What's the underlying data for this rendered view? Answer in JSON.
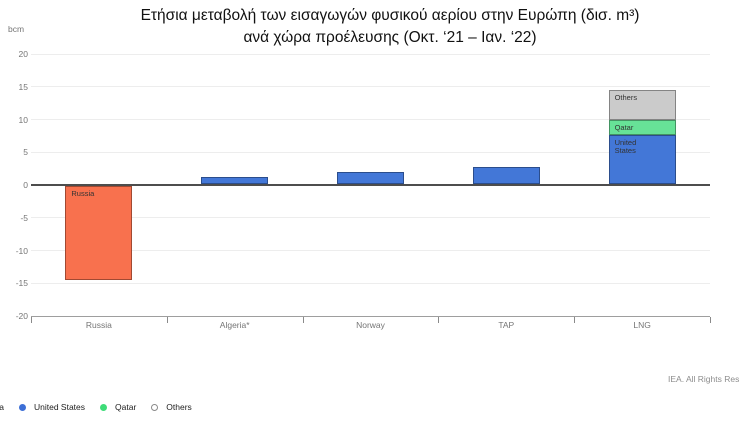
{
  "title": {
    "line1": "Ετήσια μεταβολή των εισαγωγών φυσικού αερίου στην Ευρώπη (δισ. m³)",
    "line2": "ανά χώρα προέλευσης (Οκτ. ‘21 – Ιαν. ‘22)"
  },
  "unit_label": "bcm",
  "footer": {
    "credit": "IEA. All Rights Res"
  },
  "legend": {
    "items": [
      {
        "label": "Russia",
        "color": "#f8714e",
        "hollow": false
      },
      {
        "label": "United States",
        "color": "#3d6fd6",
        "hollow": false
      },
      {
        "label": "Qatar",
        "color": "#3edc78",
        "hollow": false
      },
      {
        "label": "Others",
        "color": "#ffffff",
        "border": "#8a8a8a",
        "hollow": true
      }
    ]
  },
  "chart_data": {
    "type": "bar",
    "stacked": true,
    "title": "Ετήσια μεταβολή των εισαγωγών φυσικού αερίου στην Ευρώπη (δισ. m³) ανά χώρα προέλευσης (Οκτ. ‘21 – Ιαν. ‘22)",
    "xlabel": "",
    "ylabel": "bcm",
    "ylim": [
      -20,
      20
    ],
    "yticks": [
      20,
      15,
      10,
      5,
      0,
      -5,
      -10,
      -15,
      -20
    ],
    "grid": true,
    "legend_position": "bottom-left",
    "categories": [
      "Russia",
      "Algeria*",
      "Norway",
      "TAP",
      "LNG"
    ],
    "bars": [
      {
        "category": "Russia",
        "segments": [
          {
            "name": "Russia",
            "label": "Russia",
            "value": -14.5,
            "color": "#f8714e"
          }
        ]
      },
      {
        "category": "Algeria*",
        "segments": [
          {
            "name": "Algeria",
            "label": "",
            "value": 1.2,
            "color": "#4377d7"
          }
        ]
      },
      {
        "category": "Norway",
        "segments": [
          {
            "name": "Norway",
            "label": "",
            "value": 1.9,
            "color": "#4377d7"
          }
        ]
      },
      {
        "category": "TAP",
        "segments": [
          {
            "name": "TAP",
            "label": "",
            "value": 2.7,
            "color": "#4377d7"
          }
        ]
      },
      {
        "category": "LNG",
        "segments": [
          {
            "name": "United States",
            "label": "United States",
            "value": 7.6,
            "color": "#4377d7"
          },
          {
            "name": "Qatar",
            "label": "Qatar",
            "value": 2.3,
            "color": "#67e297"
          },
          {
            "name": "Others",
            "label": "Others",
            "value": 4.6,
            "color": "#cbcbcb"
          }
        ]
      }
    ]
  }
}
